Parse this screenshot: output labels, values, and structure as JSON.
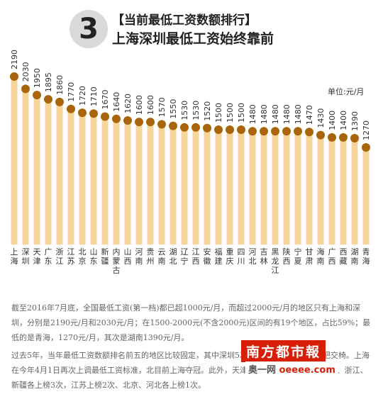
{
  "header": {
    "number": "3",
    "subtitle": "【当前最低工资数额排行】",
    "title": "上海深圳最低工资始终靠前"
  },
  "chart_data": {
    "type": "bar",
    "unit_label": "单位:元/月",
    "categories": [
      "上海",
      "深圳",
      "天津",
      "广东",
      "浙江",
      "江苏",
      "北京",
      "山东",
      "新疆",
      "内蒙古",
      "山西",
      "河南",
      "贵州",
      "云南",
      "湖北",
      "辽宁",
      "江西",
      "安徽",
      "福建",
      "重庆",
      "四川",
      "河北",
      "吉林",
      "黑龙江",
      "陕西",
      "宁夏",
      "甘肃",
      "海南",
      "广西",
      "西藏",
      "湖南",
      "青海"
    ],
    "values": [
      2190,
      2030,
      1950,
      1895,
      1860,
      1770,
      1720,
      1710,
      1670,
      1640,
      1620,
      1600,
      1600,
      1570,
      1550,
      1530,
      1530,
      1520,
      1500,
      1500,
      1500,
      1480,
      1480,
      1480,
      1480,
      1480,
      1470,
      1430,
      1400,
      1400,
      1390,
      1270
    ],
    "value_labels": [
      "2190",
      "2030",
      "1950",
      "1895",
      "1860",
      "1770",
      "1720",
      "1710",
      "1670",
      "1640",
      "1620",
      "1600",
      "1600",
      "1570",
      "1550",
      "1530",
      "1530",
      "1520",
      "1500",
      "1500",
      "1500",
      "1480",
      "1480",
      "1480",
      "1480",
      "1480",
      "1470",
      "1430",
      "1400",
      "1400",
      "1390",
      "1270"
    ],
    "colors": {
      "bar": "#f6d49c",
      "dot": "#a9650a"
    }
  },
  "notes": {
    "p1": "截至2016年7月底，全国最低工资(第一档)都已超1000元/月，而超过2000元/月的地区只有上海和深圳，分别是2190元/月和2030元/月；在1500-2000元(不含2000元)区间的有19个地区，占比59%；最低的是青海，1270元/月，其次是湖南1390元/月。",
    "p2": "过去5年，当年最低工资数额排名前五的地区比较固定，其中深圳5次，上海5次，且轮坐头把交椅。上海在今年4月1日再次上调最低工资标准，北目前上海夺冠。此外，天津上榜4次、广东(除深圳外)、浙江、新疆各上榜3次，江苏上榜2次、北京、河北各上榜1次。"
  },
  "watermark": {
    "main": "南方都市報",
    "sub_prefix": "奥一网",
    "sub_domain": "oeeee.com"
  }
}
